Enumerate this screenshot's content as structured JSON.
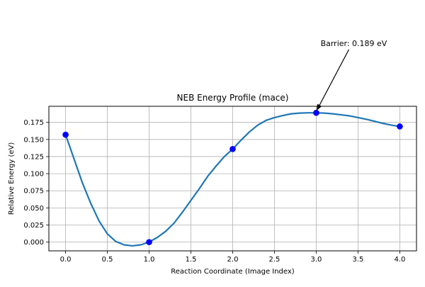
{
  "chart_data": {
    "type": "line",
    "title": "NEB Energy Profile (mace)",
    "xlabel": "Reaction Coordinate (Image Index)",
    "ylabel": "Relative Energy (eV)",
    "xlim": [
      -0.2,
      4.2
    ],
    "ylim": [
      -0.0128,
      0.1985
    ],
    "x_ticks": [
      0.0,
      0.5,
      1.0,
      1.5,
      2.0,
      2.5,
      3.0,
      3.5,
      4.0
    ],
    "x_tick_labels": [
      "0.0",
      "0.5",
      "1.0",
      "1.5",
      "2.0",
      "2.5",
      "3.0",
      "3.5",
      "4.0"
    ],
    "y_ticks": [
      0.0,
      0.025,
      0.05,
      0.075,
      0.1,
      0.125,
      0.15,
      0.175
    ],
    "y_tick_labels": [
      "0.000",
      "0.025",
      "0.050",
      "0.075",
      "0.100",
      "0.125",
      "0.150",
      "0.175"
    ],
    "grid": true,
    "series": [
      {
        "kind": "interpolated-curve",
        "color": "#1f77b4",
        "x": [
          0.0,
          0.1,
          0.2,
          0.3,
          0.4,
          0.5,
          0.6,
          0.7,
          0.8,
          0.9,
          1.0,
          1.1,
          1.2,
          1.3,
          1.4,
          1.5,
          1.6,
          1.7,
          1.8,
          1.9,
          2.0,
          2.1,
          2.2,
          2.3,
          2.4,
          2.5,
          2.6,
          2.7,
          2.8,
          2.9,
          3.0,
          3.1,
          3.2,
          3.3,
          3.4,
          3.5,
          3.6,
          3.7,
          3.8,
          3.9,
          4.0
        ],
        "y": [
          0.157,
          0.122,
          0.087,
          0.057,
          0.031,
          0.012,
          0.001,
          -0.004,
          -0.0055,
          -0.004,
          0.0,
          0.007,
          0.016,
          0.028,
          0.044,
          0.061,
          0.078,
          0.096,
          0.111,
          0.125,
          0.136,
          0.149,
          0.161,
          0.171,
          0.178,
          0.182,
          0.185,
          0.1875,
          0.1885,
          0.189,
          0.189,
          0.1885,
          0.1875,
          0.186,
          0.1845,
          0.182,
          0.1795,
          0.1765,
          0.1735,
          0.171,
          0.169
        ]
      },
      {
        "kind": "images",
        "color": "#0000ff",
        "x": [
          0,
          1,
          2,
          3,
          4
        ],
        "y": [
          0.157,
          0.0,
          0.136,
          0.189,
          0.169
        ]
      }
    ],
    "annotation": {
      "text": "Barrier: 0.189 eV",
      "x": 3.0,
      "y": 0.189
    }
  }
}
